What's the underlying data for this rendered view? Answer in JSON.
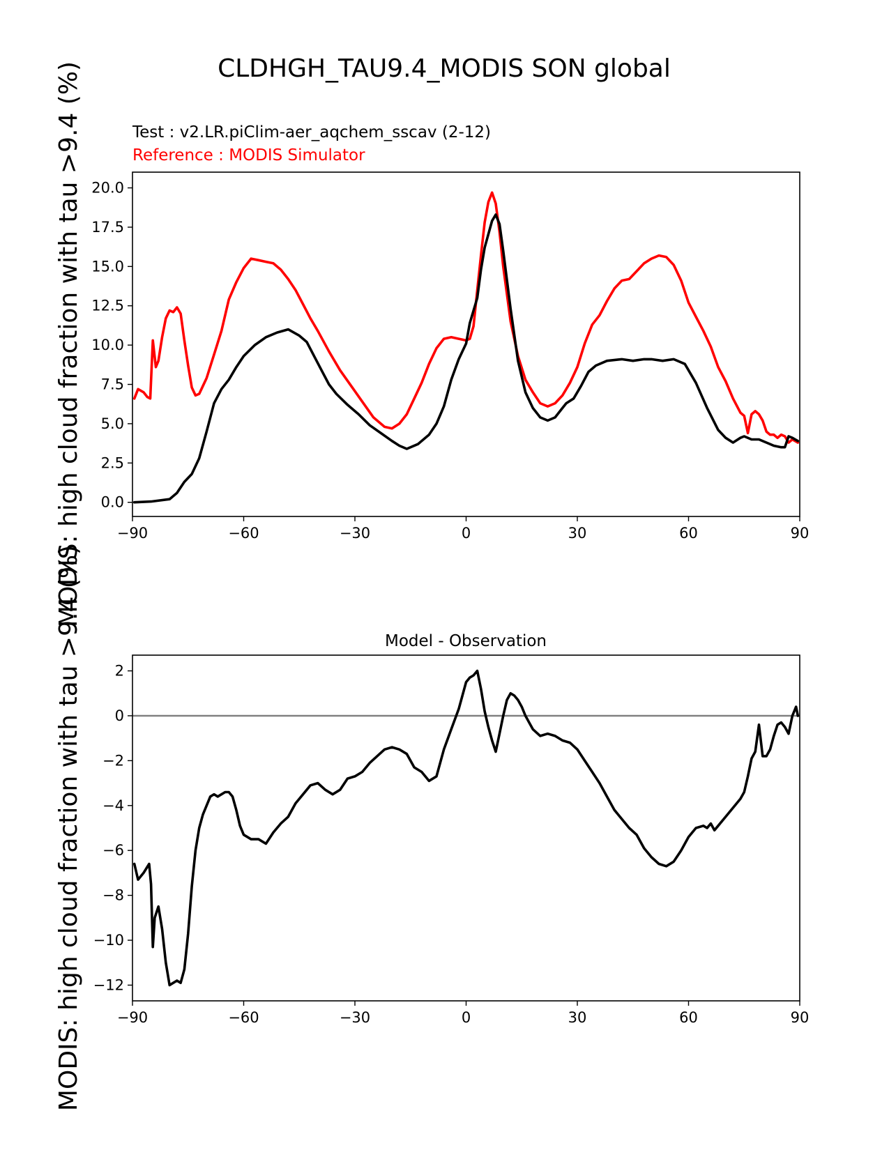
{
  "figure": {
    "suptitle": "CLDHGH_TAU9.4_MODIS SON global",
    "ylabel_top": "MODIS: high cloud fraction with tau >9.4 (%)",
    "ylabel_bottom": "MODIS: high cloud fraction with tau >9.4 (%)",
    "colors": {
      "test": "#000000",
      "reference": "#ff0000",
      "zero_line": "#808080"
    }
  },
  "chart_data": [
    {
      "type": "line",
      "name": "zonal-mean",
      "test_label": "Test : v2.LR.piClim-aer_aqchem_sscav (2-12)",
      "reference_label": "Reference : MODIS Simulator",
      "xlim": [
        -90,
        90
      ],
      "ylim": [
        -0.9,
        21.0
      ],
      "xticks": [
        -90,
        -60,
        -30,
        0,
        30,
        60,
        90
      ],
      "xtick_labels": [
        "−90",
        "−60",
        "−30",
        "0",
        "30",
        "60",
        "90"
      ],
      "yticks": [
        0.0,
        2.5,
        5.0,
        7.5,
        10.0,
        12.5,
        15.0,
        17.5,
        20.0
      ],
      "ytick_labels": [
        "0.0",
        "2.5",
        "5.0",
        "7.5",
        "10.0",
        "12.5",
        "15.0",
        "17.5",
        "20.0"
      ],
      "series": [
        {
          "name": "Test",
          "color": "#000000",
          "x": [
            -89.5,
            -85,
            -80,
            -78,
            -76,
            -74,
            -72,
            -70,
            -68,
            -66,
            -64,
            -62,
            -60,
            -57,
            -54,
            -51,
            -48,
            -45,
            -43,
            -41,
            -39,
            -37,
            -35,
            -32,
            -29,
            -26,
            -23,
            -20,
            -18,
            -16,
            -13,
            -10,
            -8,
            -6,
            -4,
            -2,
            0,
            1,
            3,
            4,
            5,
            7,
            8,
            9,
            10,
            12,
            14,
            16,
            18,
            20,
            22,
            24,
            26,
            27,
            29,
            31,
            33,
            35,
            38,
            42,
            45,
            48,
            50,
            53,
            56,
            59,
            62,
            65,
            68,
            70,
            72,
            74,
            75,
            77,
            79,
            81,
            83,
            85,
            86,
            87,
            88,
            89.5
          ],
          "values": [
            0.0,
            0.05,
            0.2,
            0.6,
            1.3,
            1.8,
            2.8,
            4.5,
            6.3,
            7.2,
            7.8,
            8.6,
            9.3,
            10.0,
            10.5,
            10.8,
            11.0,
            10.6,
            10.2,
            9.3,
            8.4,
            7.5,
            6.9,
            6.2,
            5.6,
            4.9,
            4.4,
            3.9,
            3.6,
            3.4,
            3.7,
            4.3,
            5.0,
            6.1,
            7.8,
            9.1,
            10.1,
            11.4,
            13.0,
            14.8,
            16.2,
            17.9,
            18.3,
            17.7,
            16.0,
            12.3,
            9.0,
            7.0,
            6.0,
            5.4,
            5.2,
            5.4,
            6.0,
            6.3,
            6.6,
            7.4,
            8.3,
            8.7,
            9.0,
            9.1,
            9.0,
            9.1,
            9.1,
            9.0,
            9.1,
            8.8,
            7.6,
            6.0,
            4.6,
            4.1,
            3.8,
            4.1,
            4.2,
            4.0,
            4.0,
            3.8,
            3.6,
            3.5,
            3.5,
            4.2,
            4.1,
            3.9
          ]
        },
        {
          "name": "Reference",
          "color": "#ff0000",
          "x": [
            -89.5,
            -88.5,
            -87,
            -86,
            -85.2,
            -84.5,
            -83.7,
            -83,
            -82,
            -81,
            -80,
            -79,
            -78,
            -77,
            -76,
            -75,
            -74,
            -73,
            -72,
            -71,
            -70,
            -68,
            -66,
            -64,
            -62,
            -60,
            -58,
            -56,
            -54,
            -52,
            -50,
            -48,
            -46,
            -44,
            -42,
            -40,
            -37,
            -34,
            -31,
            -28,
            -25,
            -22,
            -20,
            -18,
            -16,
            -14,
            -12,
            -10,
            -8,
            -6,
            -4,
            -2,
            0,
            1,
            2,
            3,
            4,
            5,
            6,
            7,
            8,
            9,
            10,
            12,
            14,
            16,
            18,
            20,
            22,
            24,
            26,
            28,
            30,
            32,
            34,
            36,
            38,
            40,
            42,
            44,
            46,
            48,
            50,
            52,
            54,
            56,
            58,
            60,
            62,
            64,
            65,
            66,
            68,
            70,
            72,
            74,
            75,
            76,
            77,
            78,
            79,
            80,
            81,
            82,
            83,
            84,
            85,
            86,
            87,
            88,
            89.5
          ],
          "values": [
            6.6,
            7.2,
            7.0,
            6.7,
            6.6,
            10.3,
            8.6,
            9.0,
            10.5,
            11.7,
            12.2,
            12.1,
            12.4,
            12.0,
            10.3,
            8.7,
            7.3,
            6.8,
            6.9,
            7.4,
            7.9,
            9.4,
            10.9,
            12.9,
            14.0,
            14.9,
            15.5,
            15.4,
            15.3,
            15.2,
            14.8,
            14.2,
            13.5,
            12.6,
            11.7,
            10.9,
            9.6,
            8.4,
            7.4,
            6.4,
            5.4,
            4.8,
            4.7,
            5.0,
            5.6,
            6.6,
            7.6,
            8.8,
            9.8,
            10.4,
            10.5,
            10.4,
            10.3,
            10.4,
            11.2,
            13.5,
            15.7,
            17.8,
            19.1,
            19.7,
            19.0,
            17.2,
            15.0,
            11.5,
            9.3,
            7.8,
            7.0,
            6.3,
            6.1,
            6.3,
            6.8,
            7.6,
            8.6,
            10.1,
            11.3,
            11.9,
            12.8,
            13.6,
            14.1,
            14.2,
            14.7,
            15.2,
            15.5,
            15.7,
            15.6,
            15.1,
            14.1,
            12.7,
            11.8,
            10.9,
            10.4,
            9.9,
            8.6,
            7.7,
            6.6,
            5.7,
            5.5,
            4.4,
            5.6,
            5.8,
            5.6,
            5.2,
            4.5,
            4.3,
            4.3,
            4.1,
            4.3,
            4.2,
            3.8,
            4.0,
            3.8
          ]
        }
      ]
    },
    {
      "type": "line",
      "name": "difference",
      "title": "Model - Observation",
      "xlim": [
        -90,
        90
      ],
      "ylim": [
        -12.7,
        2.7
      ],
      "xticks": [
        -90,
        -60,
        -30,
        0,
        30,
        60,
        90
      ],
      "xtick_labels": [
        "−90",
        "−60",
        "−30",
        "0",
        "30",
        "60",
        "90"
      ],
      "yticks": [
        -12,
        -10,
        -8,
        -6,
        -4,
        -2,
        0,
        2
      ],
      "ytick_labels": [
        "−12",
        "−10",
        "−8",
        "−6",
        "−4",
        "−2",
        "0",
        "2"
      ],
      "zero_line": 0,
      "series": [
        {
          "name": "Model - Observation",
          "color": "#000000",
          "x": [
            -89.5,
            -88.5,
            -87,
            -85.5,
            -85,
            -84.5,
            -84,
            -83,
            -82,
            -81,
            -80,
            -79,
            -78,
            -77,
            -76,
            -75,
            -74,
            -73,
            -72,
            -71,
            -70,
            -69,
            -68,
            -67,
            -66,
            -65,
            -64,
            -63,
            -62,
            -61,
            -60,
            -58,
            -56,
            -55,
            -54,
            -52,
            -50,
            -48,
            -46,
            -44,
            -42,
            -40,
            -38,
            -36,
            -34,
            -32,
            -30,
            -28,
            -26,
            -24,
            -22,
            -20,
            -18,
            -16,
            -14,
            -12,
            -10,
            -8,
            -6,
            -4,
            -2,
            -1,
            0,
            1,
            2,
            3,
            4,
            5,
            6,
            7,
            8,
            9,
            10,
            11,
            12,
            13,
            14,
            15,
            16,
            18,
            20,
            22,
            24,
            26,
            28,
            30,
            32,
            34,
            36,
            38,
            40,
            42,
            44,
            46,
            48,
            50,
            52,
            54,
            56,
            58,
            60,
            62,
            64,
            65,
            66,
            67,
            68,
            70,
            72,
            74,
            75,
            76,
            77,
            78,
            79,
            80,
            81,
            82,
            83,
            84,
            85,
            86,
            87,
            88,
            89,
            89.5
          ],
          "values": [
            -6.6,
            -7.3,
            -7.0,
            -6.6,
            -7.5,
            -10.3,
            -9.0,
            -8.5,
            -9.5,
            -11.0,
            -12.0,
            -11.9,
            -11.8,
            -11.9,
            -11.3,
            -9.7,
            -7.6,
            -6.0,
            -5.0,
            -4.4,
            -4.0,
            -3.6,
            -3.5,
            -3.6,
            -3.5,
            -3.4,
            -3.4,
            -3.6,
            -4.2,
            -4.9,
            -5.3,
            -5.5,
            -5.5,
            -5.6,
            -5.7,
            -5.2,
            -4.8,
            -4.5,
            -3.9,
            -3.5,
            -3.1,
            -3.0,
            -3.3,
            -3.5,
            -3.3,
            -2.8,
            -2.7,
            -2.5,
            -2.1,
            -1.8,
            -1.5,
            -1.4,
            -1.5,
            -1.7,
            -2.3,
            -2.5,
            -2.9,
            -2.7,
            -1.5,
            -0.6,
            0.3,
            0.9,
            1.5,
            1.7,
            1.8,
            2.0,
            1.2,
            0.2,
            -0.5,
            -1.1,
            -1.6,
            -0.8,
            0.0,
            0.7,
            1.0,
            0.9,
            0.7,
            0.4,
            0.0,
            -0.6,
            -0.9,
            -0.8,
            -0.9,
            -1.1,
            -1.2,
            -1.5,
            -2.0,
            -2.5,
            -3.0,
            -3.6,
            -4.2,
            -4.6,
            -5.0,
            -5.3,
            -5.9,
            -6.3,
            -6.6,
            -6.7,
            -6.5,
            -6.0,
            -5.4,
            -5.0,
            -4.9,
            -5.0,
            -4.8,
            -5.1,
            -4.9,
            -4.5,
            -4.1,
            -3.7,
            -3.4,
            -2.7,
            -1.9,
            -1.6,
            -0.4,
            -1.8,
            -1.8,
            -1.5,
            -0.9,
            -0.4,
            -0.3,
            -0.5,
            -0.8,
            0.0,
            0.4,
            0.0
          ]
        }
      ]
    }
  ]
}
